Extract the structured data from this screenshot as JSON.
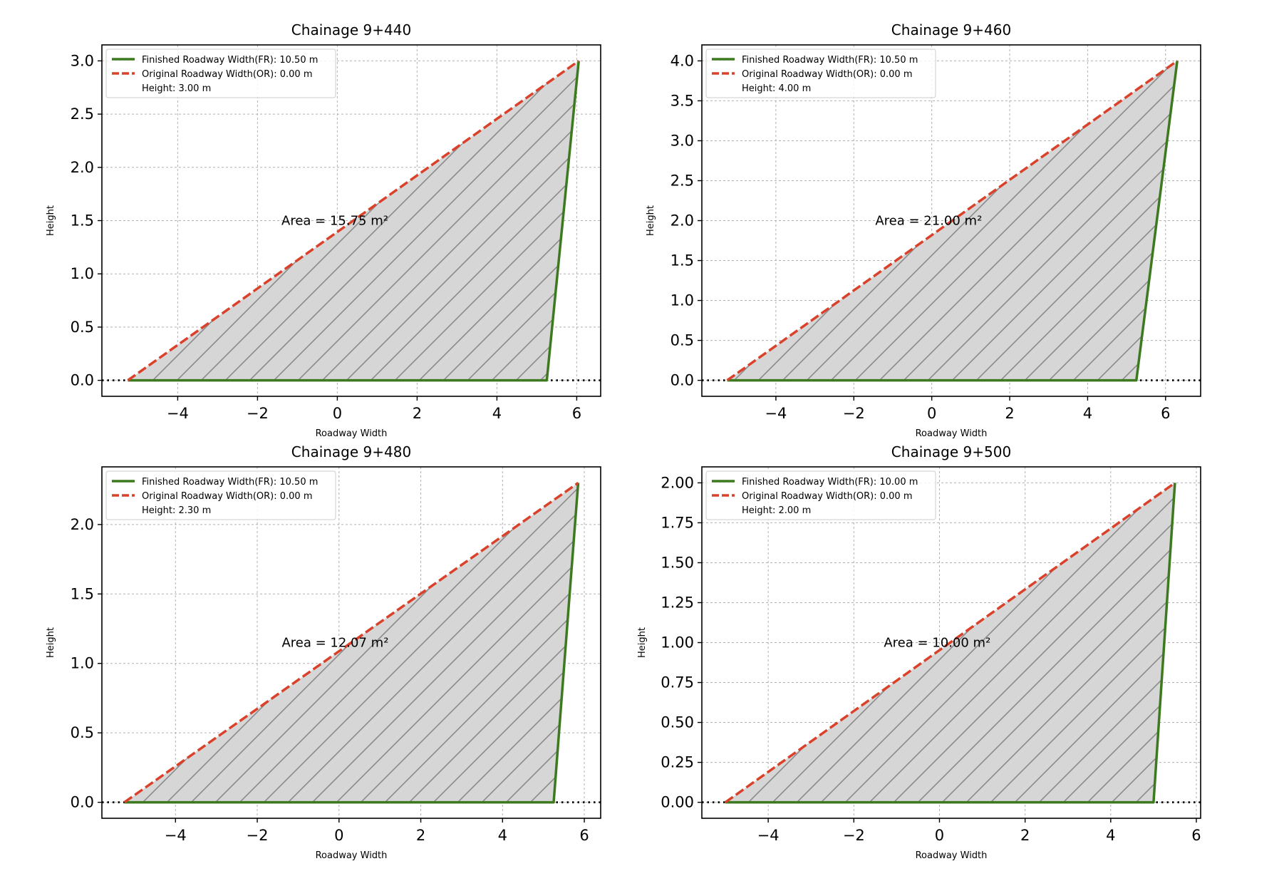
{
  "chart_data": [
    {
      "type": "area",
      "title": "Chainage 9+440",
      "xlabel": "Roadway Width",
      "ylabel": "Height",
      "xlim": [
        -5.9,
        6.6
      ],
      "ylim": [
        -0.15,
        3.15
      ],
      "xticks": [
        -4,
        -2,
        0,
        2,
        4,
        6
      ],
      "yticks": [
        0.0,
        0.5,
        1.0,
        1.5,
        2.0,
        2.5,
        3.0
      ],
      "xtick_labels": [
        "−4",
        "−2",
        "0",
        "2",
        "4",
        "6"
      ],
      "ytick_labels": [
        "0.0",
        "0.5",
        "1.0",
        "1.5",
        "2.0",
        "2.5",
        "3.0"
      ],
      "finished_roadway": {
        "x": [
          -5.25,
          5.25,
          6.05
        ],
        "y": [
          0,
          0,
          3.0
        ]
      },
      "original_roadway": {
        "x": [
          -5.25,
          6.05
        ],
        "y": [
          0,
          3.0
        ]
      },
      "area_label": "Area = 15.75 m²",
      "area_label_pos": [
        -1.4,
        1.5
      ],
      "legend": [
        "Finished Roadway Width(FR): 10.50 m",
        "Original Roadway Width(OR): 0.00 m",
        "Height: 3.00 m"
      ]
    },
    {
      "type": "area",
      "title": "Chainage 9+460",
      "xlabel": "Roadway Width",
      "ylabel": "Height",
      "xlim": [
        -5.9,
        6.9
      ],
      "ylim": [
        -0.2,
        4.2
      ],
      "xticks": [
        -4,
        -2,
        0,
        2,
        4,
        6
      ],
      "yticks": [
        0.0,
        0.5,
        1.0,
        1.5,
        2.0,
        2.5,
        3.0,
        3.5,
        4.0
      ],
      "xtick_labels": [
        "−4",
        "−2",
        "0",
        "2",
        "4",
        "6"
      ],
      "ytick_labels": [
        "0.0",
        "0.5",
        "1.0",
        "1.5",
        "2.0",
        "2.5",
        "3.0",
        "3.5",
        "4.0"
      ],
      "finished_roadway": {
        "x": [
          -5.25,
          5.25,
          6.3
        ],
        "y": [
          0,
          0,
          4.0
        ]
      },
      "original_roadway": {
        "x": [
          -5.25,
          6.3
        ],
        "y": [
          0,
          4.0
        ]
      },
      "area_label": "Area = 21.00 m²",
      "area_label_pos": [
        -1.45,
        2.0
      ],
      "legend": [
        "Finished Roadway Width(FR): 10.50 m",
        "Original Roadway Width(OR): 0.00 m",
        "Height: 4.00 m"
      ]
    },
    {
      "type": "area",
      "title": "Chainage 9+480",
      "xlabel": "Roadway Width",
      "ylabel": "Height",
      "xlim": [
        -5.8,
        6.4
      ],
      "ylim": [
        -0.115,
        2.415
      ],
      "xticks": [
        -4,
        -2,
        0,
        2,
        4,
        6
      ],
      "yticks": [
        0.0,
        0.5,
        1.0,
        1.5,
        2.0
      ],
      "xtick_labels": [
        "−4",
        "−2",
        "0",
        "2",
        "4",
        "6"
      ],
      "ytick_labels": [
        "0.0",
        "0.5",
        "1.0",
        "1.5",
        "2.0"
      ],
      "finished_roadway": {
        "x": [
          -5.25,
          5.25,
          5.85
        ],
        "y": [
          0,
          0,
          2.3
        ]
      },
      "original_roadway": {
        "x": [
          -5.25,
          5.85
        ],
        "y": [
          0,
          2.3
        ]
      },
      "area_label": "Area = 12.07 m²",
      "area_label_pos": [
        -1.4,
        1.15
      ],
      "legend": [
        "Finished Roadway Width(FR): 10.50 m",
        "Original Roadway Width(OR): 0.00 m",
        "Height: 2.30 m"
      ]
    },
    {
      "type": "area",
      "title": "Chainage 9+500",
      "xlabel": "Roadway Width",
      "ylabel": "Height",
      "xlim": [
        -5.55,
        6.1
      ],
      "ylim": [
        -0.1,
        2.1
      ],
      "xticks": [
        -4,
        -2,
        0,
        2,
        4,
        6
      ],
      "yticks": [
        0.0,
        0.25,
        0.5,
        0.75,
        1.0,
        1.25,
        1.5,
        1.75,
        2.0
      ],
      "xtick_labels": [
        "−4",
        "−2",
        "0",
        "2",
        "4",
        "6"
      ],
      "ytick_labels": [
        "0.00",
        "0.25",
        "0.50",
        "0.75",
        "1.00",
        "1.25",
        "1.50",
        "1.75",
        "2.00"
      ],
      "finished_roadway": {
        "x": [
          -5.0,
          5.0,
          5.5
        ],
        "y": [
          0,
          0,
          2.0
        ]
      },
      "original_roadway": {
        "x": [
          -5.0,
          5.5
        ],
        "y": [
          0,
          2.0
        ]
      },
      "area_label": "Area = 10.00 m²",
      "area_label_pos": [
        -1.3,
        1.0
      ],
      "legend": [
        "Finished Roadway Width(FR): 10.00 m",
        "Original Roadway Width(OR): 0.00 m",
        "Height: 2.00 m"
      ]
    }
  ],
  "colors": {
    "finished": "#3d7a1f",
    "original": "#d9412a",
    "fill": "#d6d6d6",
    "hatch": "#8a8a8a",
    "grid": "#b0b0b0",
    "baseline": "#000000"
  }
}
